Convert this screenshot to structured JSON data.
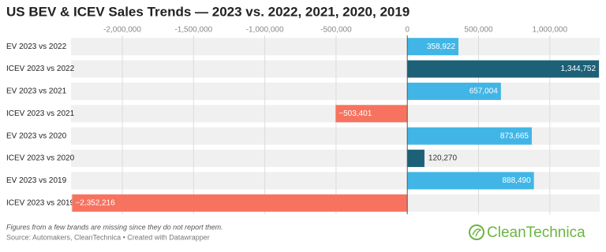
{
  "chart_data": {
    "type": "bar",
    "orientation": "horizontal",
    "title": "US BEV & ICEV Sales Trends — 2023 vs. 2022, 2021, 2020, 2019",
    "categories": [
      "EV 2023 vs 2022",
      "ICEV 2023 vs 2022",
      "EV 2023 vs 2021",
      "ICEV 2023 vs 2021",
      "EV 2023 vs 2020",
      "ICEV 2023 vs 2020",
      "EV 2023 vs 2019",
      "ICEV 2023 vs 2019"
    ],
    "values": [
      358922,
      1344752,
      657004,
      -503401,
      873665,
      120270,
      888490,
      -2352216
    ],
    "value_labels": [
      "358,922",
      "1,344,752",
      "657,004",
      "−503,401",
      "873,665",
      "120,270",
      "888,490",
      "−2,352,216"
    ],
    "colors": [
      "#41b6e6",
      "#1d6178",
      "#41b6e6",
      "#f7735f",
      "#41b6e6",
      "#1d6178",
      "#41b6e6",
      "#f7735f"
    ],
    "xlim": [
      -2360000,
      1350000
    ],
    "xticks": [
      {
        "value": -2000000,
        "label": "-2,000,000"
      },
      {
        "value": -1500000,
        "label": "-1,500,000"
      },
      {
        "value": -1000000,
        "label": "-1,000,000"
      },
      {
        "value": -500000,
        "label": "-500,000"
      },
      0,
      {
        "value": 500000,
        "label": "500,000"
      },
      {
        "value": 1000000,
        "label": "1,000,000"
      }
    ],
    "grid": true,
    "notes": "Figures from a few brands are missing since they do not report them.",
    "source": "Source: Automakers, CleanTechnica • Created with Datawrapper"
  },
  "logo": "CleanTechnica"
}
